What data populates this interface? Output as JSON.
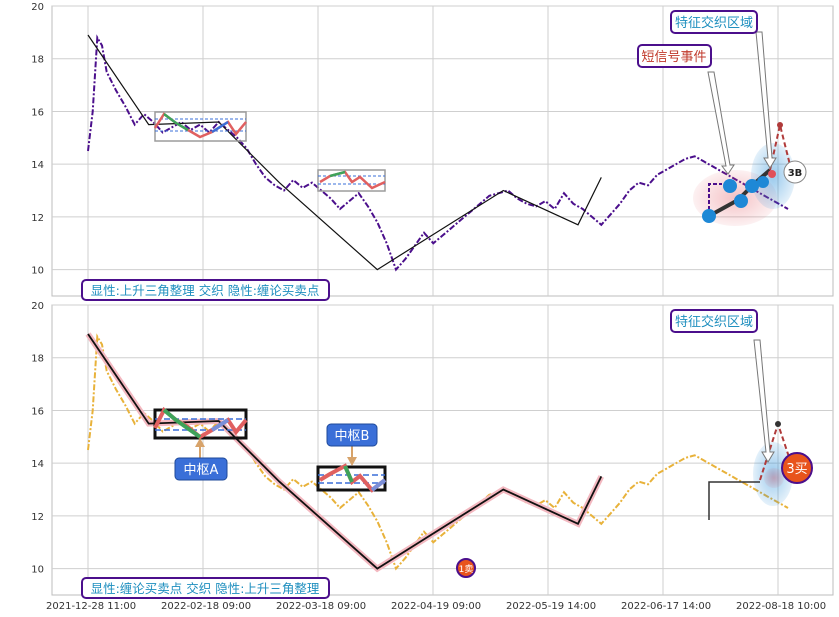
{
  "colors": {
    "price_top": "#4b0f8c",
    "price_bottom": "#e8b23a",
    "trend_line": "#111111",
    "grid": "#cfcfcf",
    "label_box_border": "#4b0f8c",
    "label_text": "#1f8fbf",
    "short_signal_text": "#c0392b",
    "callout_blue": "#3a6fd8",
    "buy_marker": "#e8541c",
    "blue_dot": "#1e88d6"
  },
  "chart_data": [
    {
      "type": "line",
      "title": "",
      "ylim": [
        9,
        20
      ],
      "yticks": [
        10,
        12,
        14,
        16,
        18,
        20
      ],
      "grid": true,
      "x_tick_labels": [
        "2021-12-28 11:00",
        "2022-02-18 09:00",
        "2022-03-18 09:00",
        "2022-04-19 09:00",
        "2022-05-19 14:00",
        "2022-06-17 14:00",
        "2022-08-18 10:00"
      ],
      "series": [
        {
          "role": "price",
          "style": "dash-dot",
          "x": [
            0,
            1,
            2,
            3,
            4,
            6,
            8,
            10,
            12,
            14,
            16,
            18,
            20,
            22,
            24,
            26,
            28,
            30,
            32,
            34,
            36,
            38,
            40,
            42,
            44,
            46,
            48,
            50,
            52,
            54,
            56,
            58,
            60,
            62,
            64,
            66,
            68,
            70,
            72,
            74,
            76,
            78,
            80,
            82,
            84,
            86,
            88,
            90,
            92,
            94,
            96,
            98,
            100,
            102,
            104,
            106,
            108,
            110,
            112,
            114,
            116,
            118,
            120,
            122,
            124,
            126,
            128,
            130,
            132,
            134,
            136,
            138,
            140,
            142,
            144,
            146,
            148,
            150
          ],
          "values": [
            14.5,
            16,
            18.8,
            18.5,
            17.5,
            16.8,
            16.2,
            15.5,
            15.9,
            15.6,
            15.2,
            15.4,
            15.6,
            15.3,
            15.5,
            15.2,
            15.6,
            15.3,
            15.0,
            14.6,
            14.0,
            13.5,
            13.2,
            13.0,
            13.4,
            13.1,
            13.3,
            13.0,
            12.7,
            12.3,
            12.6,
            12.9,
            12.4,
            11.8,
            11.0,
            10.0,
            10.4,
            10.9,
            11.4,
            11.0,
            11.3,
            11.6,
            11.9,
            12.2,
            12.5,
            12.8,
            12.9,
            13.0,
            12.7,
            12.5,
            12.4,
            12.6,
            12.3,
            12.9,
            12.5,
            12.3,
            12.0,
            11.7,
            12.1,
            12.5,
            13.0,
            13.3,
            13.2,
            13.6,
            13.8,
            14.0,
            14.2,
            14.3,
            14.1,
            13.9,
            13.7,
            13.5,
            13.3,
            13.1,
            12.9,
            12.7,
            12.5,
            12.3
          ]
        },
        {
          "role": "trend",
          "x": [
            0,
            13,
            28,
            41,
            62,
            89,
            105,
            110
          ],
          "values": [
            18.9,
            15.5,
            15.6,
            13.3,
            10.0,
            13.0,
            11.7,
            13.5
          ]
        }
      ],
      "annotations": [
        {
          "text": "显性:上升三角整理 交织 隐性:缠论买卖点",
          "kind": "label"
        },
        {
          "text": "特征交织区域",
          "kind": "callout"
        },
        {
          "text": "短信号事件",
          "kind": "callout"
        },
        {
          "text": "3B",
          "kind": "marker"
        }
      ]
    },
    {
      "type": "line",
      "title": "",
      "ylim": [
        9,
        20
      ],
      "yticks": [
        10,
        12,
        14,
        16,
        18,
        20
      ],
      "grid": true,
      "x_tick_labels": [
        "2021-12-28 11:00",
        "2022-02-18 09:00",
        "2022-03-18 09:00",
        "2022-04-19 09:00",
        "2022-05-19 14:00",
        "2022-06-17 14:00",
        "2022-08-18 10:00"
      ],
      "series": [
        {
          "role": "price",
          "style": "dash-dot",
          "x": [
            0,
            1,
            2,
            3,
            4,
            6,
            8,
            10,
            12,
            14,
            16,
            18,
            20,
            22,
            24,
            26,
            28,
            30,
            32,
            34,
            36,
            38,
            40,
            42,
            44,
            46,
            48,
            50,
            52,
            54,
            56,
            58,
            60,
            62,
            64,
            66,
            68,
            70,
            72,
            74,
            76,
            78,
            80,
            82,
            84,
            86,
            88,
            90,
            92,
            94,
            96,
            98,
            100,
            102,
            104,
            106,
            108,
            110,
            112,
            114,
            116,
            118,
            120,
            122,
            124,
            126,
            128,
            130,
            132,
            134,
            136,
            138,
            140,
            142,
            144,
            146,
            148,
            150
          ],
          "values": [
            14.5,
            16,
            18.8,
            18.5,
            17.5,
            16.8,
            16.2,
            15.5,
            15.9,
            15.6,
            15.2,
            15.4,
            15.6,
            15.3,
            15.5,
            15.2,
            15.6,
            15.3,
            15.0,
            14.6,
            14.0,
            13.5,
            13.2,
            13.0,
            13.4,
            13.1,
            13.3,
            13.0,
            12.7,
            12.3,
            12.6,
            12.9,
            12.4,
            11.8,
            11.0,
            10.0,
            10.4,
            10.9,
            11.4,
            11.0,
            11.3,
            11.6,
            11.9,
            12.2,
            12.5,
            12.8,
            12.9,
            13.0,
            12.7,
            12.5,
            12.4,
            12.6,
            12.3,
            12.9,
            12.5,
            12.3,
            12.0,
            11.7,
            12.1,
            12.5,
            13.0,
            13.3,
            13.2,
            13.6,
            13.8,
            14.0,
            14.2,
            14.3,
            14.1,
            13.9,
            13.7,
            13.5,
            13.3,
            13.1,
            12.9,
            12.7,
            12.5,
            12.3
          ]
        },
        {
          "role": "trend",
          "x": [
            0,
            13,
            28,
            41,
            62,
            89,
            105,
            110
          ],
          "values": [
            18.9,
            15.5,
            15.6,
            13.3,
            10.0,
            13.0,
            11.7,
            13.5
          ]
        }
      ],
      "annotations": [
        {
          "text": "显性:缠论买卖点 交织 隐性:上升三角整理",
          "kind": "label"
        },
        {
          "text": "特征交织区域",
          "kind": "callout"
        },
        {
          "text": "中枢A",
          "kind": "callout"
        },
        {
          "text": "中枢B",
          "kind": "callout"
        },
        {
          "text": "1卖",
          "kind": "marker"
        },
        {
          "text": "3买",
          "kind": "marker"
        }
      ]
    }
  ]
}
